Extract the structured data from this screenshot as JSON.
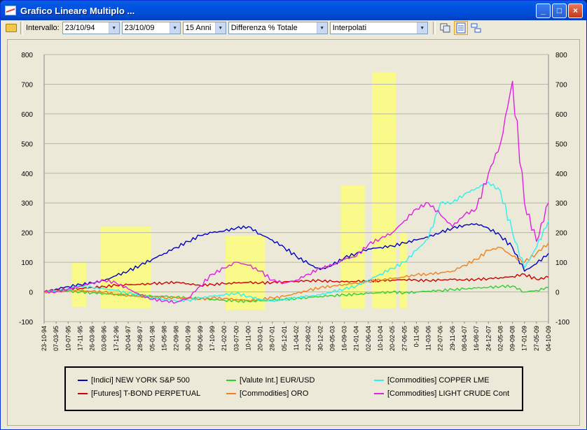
{
  "window": {
    "title": "Grafico Lineare Multiplo ..."
  },
  "toolbar": {
    "interval_label": "Intervallo:",
    "date_from": "23/10/94",
    "date_to": "23/10/09",
    "period": "15 Anni",
    "mode": "Differenza % Totale",
    "interp": "Interpolati"
  },
  "chart_data": {
    "type": "line",
    "ylim": [
      -100,
      800
    ],
    "yticks": [
      -100,
      0,
      100,
      200,
      300,
      400,
      500,
      600,
      700,
      800
    ],
    "grid": true,
    "xticks": [
      "23-10-94",
      "07-03-95",
      "10-07-95",
      "17-11-95",
      "26-03-96",
      "03-08-96",
      "17-12-96",
      "20-04-97",
      "28-08-97",
      "05-01-98",
      "15-05-98",
      "22-09-98",
      "30-01-99",
      "09-06-99",
      "17-10-99",
      "21-02-00",
      "03-07-00",
      "10-11-00",
      "20-03-01",
      "28-07-01",
      "05-12-01",
      "11-04-02",
      "22-08-02",
      "30-12-02",
      "09-05-03",
      "16-09-03",
      "21-01-04",
      "02-06-04",
      "10-10-04",
      "20-02-05",
      "27-06-05",
      "0-11-05",
      "11-03-06",
      "22-07-06",
      "29-11-06",
      "08-04-07",
      "16-08-07",
      "24-12-07",
      "02-05-08",
      "09-09-08",
      "17-01-09",
      "27-05-09",
      "04-10-09"
    ],
    "highlight_periods": [
      {
        "from": 2.3,
        "to": 3.5,
        "ymin": -50,
        "ymax": 100
      },
      {
        "from": 4.7,
        "to": 8.9,
        "ymin": -55,
        "ymax": 220
      },
      {
        "from": 15.1,
        "to": 18.4,
        "ymin": -60,
        "ymax": 190
      },
      {
        "from": 24.7,
        "to": 26.7,
        "ymin": -55,
        "ymax": 360
      },
      {
        "from": 27.3,
        "to": 29.3,
        "ymin": -55,
        "ymax": 740
      },
      {
        "from": 29.6,
        "to": 30.2,
        "ymin": -55,
        "ymax": 200
      }
    ],
    "series": [
      {
        "name": "[Indici]  NEW YORK S&P 500",
        "color": "#0000c0",
        "values": [
          0,
          10,
          18,
          25,
          30,
          38,
          55,
          70,
          90,
          110,
          130,
          150,
          170,
          190,
          200,
          205,
          215,
          220,
          195,
          175,
          150,
          120,
          95,
          75,
          90,
          115,
          130,
          145,
          150,
          155,
          165,
          175,
          185,
          200,
          215,
          225,
          230,
          215,
          190,
          150,
          70,
          95,
          130
        ]
      },
      {
        "name": "[Futures]  T-BOND PERPETUAL",
        "color": "#d00000",
        "values": [
          0,
          5,
          10,
          12,
          15,
          18,
          22,
          24,
          25,
          28,
          30,
          33,
          28,
          22,
          25,
          28,
          30,
          32,
          30,
          32,
          35,
          36,
          38,
          38,
          35,
          34,
          35,
          37,
          38,
          40,
          42,
          40,
          38,
          40,
          42,
          40,
          42,
          45,
          48,
          52,
          60,
          42,
          50
        ]
      },
      {
        "name": "[Valute Int.]  EUR/USD",
        "color": "#30d030",
        "values": [
          0,
          2,
          3,
          0,
          -3,
          -5,
          -8,
          -10,
          -12,
          -15,
          -15,
          -18,
          -20,
          -22,
          -25,
          -28,
          -30,
          -32,
          -30,
          -28,
          -25,
          -22,
          -18,
          -15,
          -12,
          -10,
          -8,
          -5,
          -3,
          0,
          -3,
          0,
          3,
          5,
          8,
          10,
          13,
          15,
          18,
          20,
          0,
          5,
          15
        ]
      },
      {
        "name": "[Commodities]  ORO",
        "color": "#f08020",
        "values": [
          0,
          3,
          5,
          4,
          2,
          0,
          -8,
          -12,
          -15,
          -18,
          -20,
          -20,
          -22,
          -25,
          -20,
          -22,
          -25,
          -28,
          -25,
          -20,
          -15,
          -5,
          5,
          15,
          20,
          25,
          30,
          35,
          40,
          45,
          50,
          58,
          60,
          65,
          70,
          90,
          110,
          140,
          150,
          120,
          100,
          130,
          165
        ]
      },
      {
        "name": "[Commodities]  COPPER LME",
        "color": "#30f0f0",
        "values": [
          0,
          5,
          10,
          20,
          15,
          10,
          5,
          -5,
          -10,
          -20,
          -25,
          -30,
          -28,
          -20,
          -15,
          -10,
          -5,
          -15,
          -25,
          -30,
          -25,
          -20,
          -15,
          -10,
          0,
          10,
          20,
          40,
          60,
          80,
          100,
          140,
          180,
          300,
          300,
          330,
          350,
          370,
          340,
          200,
          80,
          150,
          240
        ]
      },
      {
        "name": "[Commodities]  LIGHT CRUDE Cont",
        "color": "#e020e0",
        "values": [
          0,
          0,
          10,
          20,
          30,
          40,
          30,
          10,
          -10,
          -25,
          -30,
          -35,
          -20,
          20,
          60,
          80,
          100,
          90,
          70,
          40,
          30,
          40,
          60,
          80,
          90,
          110,
          120,
          160,
          180,
          200,
          240,
          280,
          300,
          260,
          220,
          260,
          280,
          400,
          500,
          710,
          300,
          170,
          300
        ]
      }
    ]
  },
  "legend": {
    "items": [
      "[Indici]  NEW YORK S&P 500",
      "[Futures]  T-BOND PERPETUAL",
      "[Valute Int.]  EUR/USD",
      "[Commodities]  ORO",
      "[Commodities]  COPPER LME",
      "[Commodities]  LIGHT CRUDE Cont"
    ]
  }
}
